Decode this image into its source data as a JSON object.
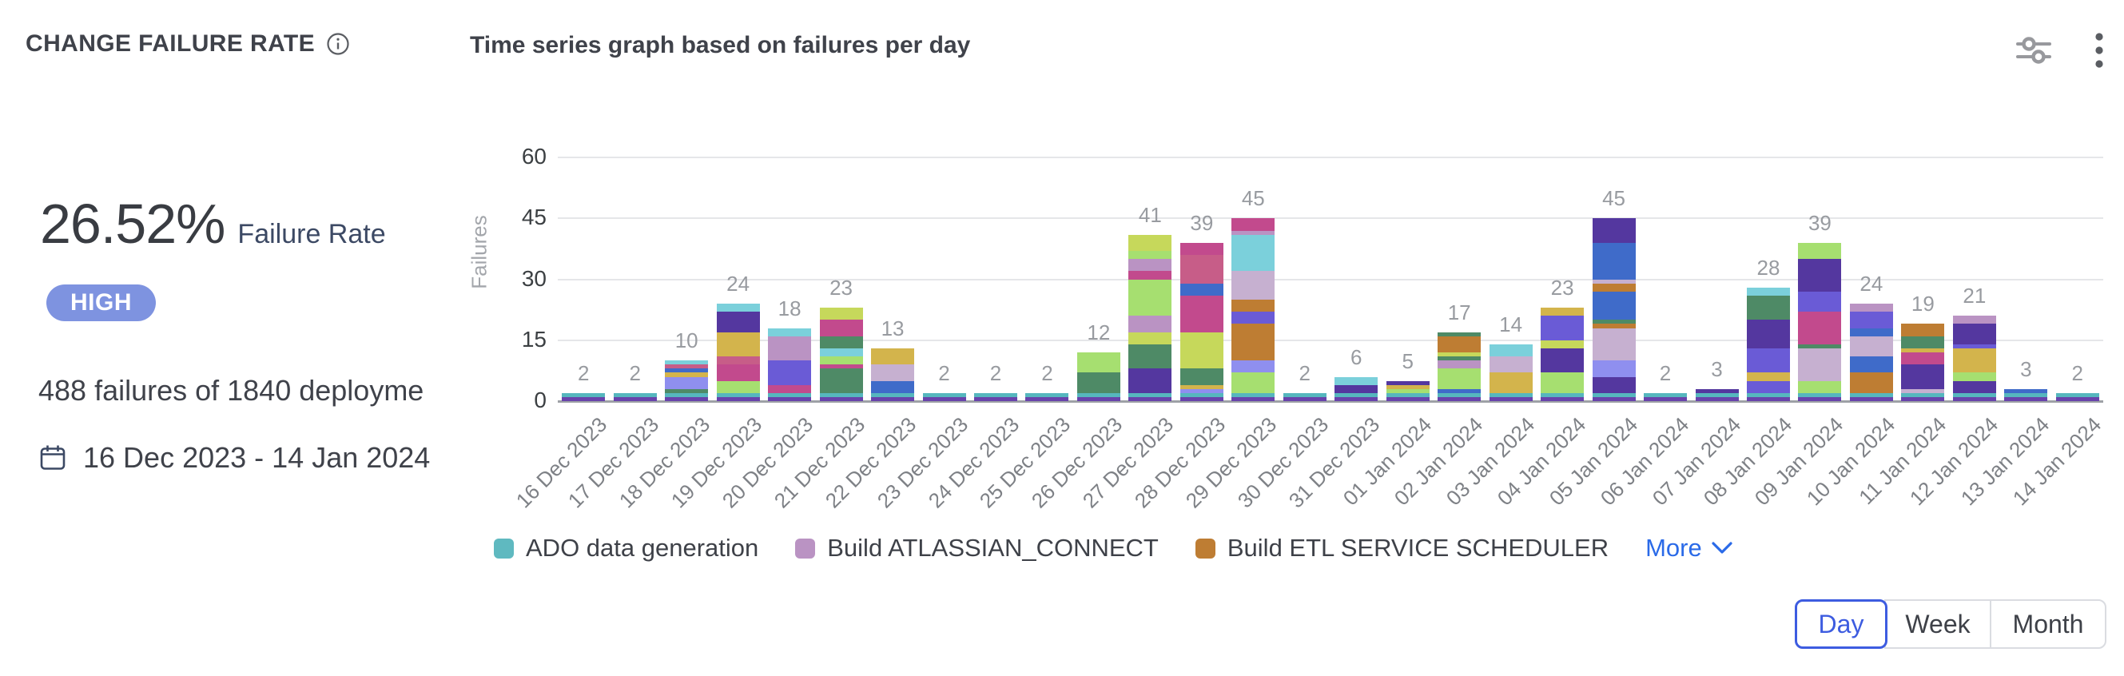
{
  "card": {
    "title": "CHANGE FAILURE RATE"
  },
  "stats": {
    "rate": "26.52%",
    "rate_label": "Failure Rate",
    "severity": "HIGH",
    "summary": "488 failures of 1840 deployme",
    "date_range": "16 Dec 2023 - 14 Jan 2024"
  },
  "chart_data": {
    "type": "bar",
    "stacked": true,
    "title": "Time series graph based on failures per day",
    "ylabel": "Failures",
    "xlabel": "",
    "ylim": [
      0,
      60
    ],
    "yticks": [
      0,
      15,
      30,
      45,
      60
    ],
    "grid": true,
    "bar_value_labels": true,
    "legend_position": "bottom",
    "categories": [
      "16 Dec 2023",
      "17 Dec 2023",
      "18 Dec 2023",
      "19 Dec 2023",
      "20 Dec 2023",
      "21 Dec 2023",
      "22 Dec 2023",
      "23 Dec 2023",
      "24 Dec 2023",
      "25 Dec 2023",
      "26 Dec 2023",
      "27 Dec 2023",
      "28 Dec 2023",
      "29 Dec 2023",
      "30 Dec 2023",
      "31 Dec 2023",
      "01 Jan 2024",
      "02 Jan 2024",
      "03 Jan 2024",
      "04 Jan 2024",
      "05 Jan 2024",
      "06 Jan 2024",
      "07 Jan 2024",
      "08 Jan 2024",
      "09 Jan 2024",
      "10 Jan 2024",
      "11 Jan 2024",
      "12 Jan 2024",
      "13 Jan 2024",
      "14 Jan 2024"
    ],
    "values": [
      2,
      2,
      10,
      24,
      18,
      23,
      13,
      2,
      2,
      2,
      12,
      41,
      39,
      45,
      2,
      6,
      5,
      17,
      14,
      23,
      45,
      2,
      3,
      28,
      39,
      24,
      19,
      21,
      3,
      2
    ],
    "palette": [
      "#6843ab",
      "#56b7be",
      "#3f6bc9",
      "#d3b44c",
      "#be7d33",
      "#c24a8d",
      "#8f8fef",
      "#4e8a66",
      "#54379f",
      "#c6d85b",
      "#a6df70",
      "#7bd0db",
      "#ba93c3",
      "#c6b0d0",
      "#c75d88",
      "#6a5bd6"
    ],
    "legend": [
      {
        "label": "ADO data generation",
        "color": "#5fb9c0"
      },
      {
        "label": "Build ATLASSIAN_CONNECT",
        "color": "#ba93c3"
      },
      {
        "label": "Build ETL SERVICE SCHEDULER",
        "color": "#be7d33"
      }
    ],
    "legend_more_label": "More"
  },
  "controls": {
    "view_options": [
      {
        "label": "Day",
        "active": true
      },
      {
        "label": "Week",
        "active": false
      },
      {
        "label": "Month",
        "active": false
      }
    ]
  }
}
